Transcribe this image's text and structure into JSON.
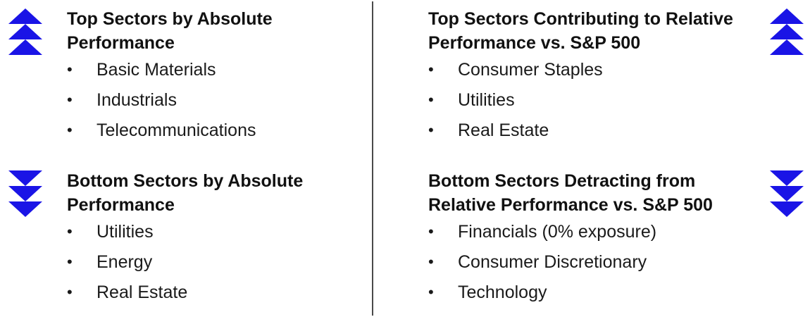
{
  "colors": {
    "arrow": "#1a14e6",
    "divider": "#4a4a4a",
    "text": "#1a1a1a"
  },
  "icons": {
    "top_arrow": "triple-chevron-up-icon",
    "bottom_arrow": "triple-chevron-down-icon"
  },
  "bullet_char": "•",
  "top_left": {
    "title": "Top Sectors by Absolute Performance",
    "items": [
      "Basic Materials",
      "Industrials",
      "Telecommunications"
    ]
  },
  "bottom_left": {
    "title": "Bottom Sectors by Absolute Performance",
    "items": [
      "Utilities",
      "Energy",
      "Real Estate"
    ]
  },
  "top_right": {
    "title": "Top Sectors Contributing to Relative Performance vs. S&P 500",
    "items": [
      "Consumer Staples",
      "Utilities",
      "Real Estate"
    ]
  },
  "bottom_right": {
    "title": "Bottom Sectors Detracting from Relative Performance vs. S&P 500",
    "items": [
      "Financials (0% exposure)",
      "Consumer Discretionary",
      "Technology"
    ]
  }
}
